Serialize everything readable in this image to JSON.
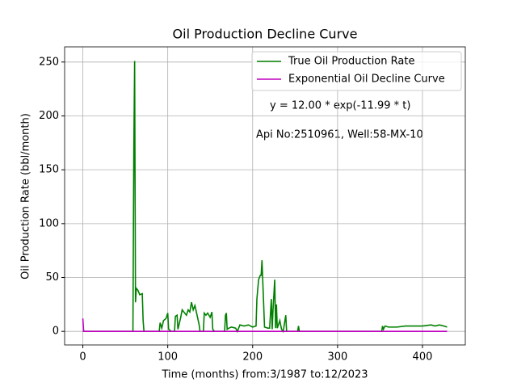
{
  "chart_data": {
    "type": "line",
    "title": "Oil Production Decline Curve",
    "xlabel": "Time (months) from:3/1987 to:12/2023",
    "ylabel": "Oil Production Rate (bbl/month)",
    "annotations": [
      "y = 12.00 * exp(-11.99 * t)",
      "Api No:2510961, Well:58-MX-10"
    ],
    "xlim": [
      -21.45,
      450.45
    ],
    "ylim": [
      -12.6,
      264.1
    ],
    "xticks": [
      0,
      100,
      200,
      300,
      400
    ],
    "yticks": [
      0,
      50,
      100,
      150,
      200,
      250
    ],
    "grid": true,
    "legend": "upper right",
    "series": [
      {
        "name": "True Oil Production Rate",
        "color": "#008000",
        "x": [
          0,
          59,
          60,
          61,
          62,
          63,
          65,
          67,
          70,
          71,
          72,
          90,
          91,
          93,
          95,
          98,
          100,
          101,
          104,
          108,
          109,
          111,
          112,
          115,
          117,
          119,
          122,
          124,
          126,
          128,
          130,
          132,
          134,
          137,
          138,
          142,
          143,
          145,
          147,
          150,
          152,
          153,
          155,
          167,
          168,
          169,
          170,
          172,
          175,
          180,
          182,
          185,
          190,
          195,
          200,
          204,
          205,
          207,
          209,
          210,
          211,
          212,
          214,
          218,
          220,
          222,
          223,
          224,
          226,
          227,
          228,
          229,
          232,
          234,
          236,
          239,
          240,
          253,
          254,
          255,
          352,
          353,
          354,
          356,
          360,
          370,
          380,
          390,
          400,
          410,
          415,
          420,
          425,
          429
        ],
        "values": [
          0,
          0,
          165,
          251,
          27,
          40,
          38,
          34,
          35,
          10,
          0,
          0,
          8,
          3,
          10,
          12,
          17,
          2,
          0,
          0,
          14,
          15,
          2,
          12,
          20,
          18,
          15,
          20,
          18,
          27,
          20,
          24,
          17,
          6,
          0,
          0,
          17,
          15,
          17,
          13,
          18,
          2,
          0,
          0,
          15,
          17,
          2,
          3,
          4,
          3,
          0,
          6,
          5,
          6,
          4,
          5,
          30,
          48,
          52,
          52,
          66,
          45,
          4,
          3,
          3,
          30,
          2,
          20,
          48,
          3,
          25,
          3,
          10,
          2,
          0,
          15,
          0,
          0,
          5,
          0,
          0,
          5,
          2,
          5,
          4,
          4,
          5,
          5,
          5,
          6,
          5,
          6,
          5,
          4
        ]
      },
      {
        "name": "Exponential Oil Decline Curve",
        "color": "#bf00bf",
        "x": [
          0,
          1,
          429
        ],
        "values": [
          12,
          0,
          0
        ]
      }
    ]
  }
}
